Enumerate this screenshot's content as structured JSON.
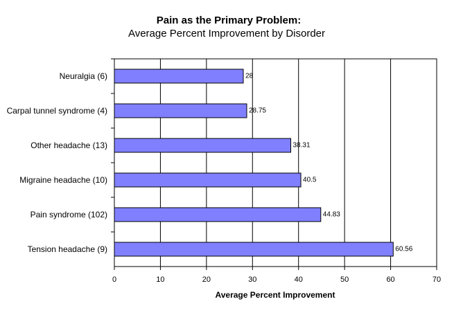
{
  "chart_data": {
    "type": "barh",
    "title": "Pain as the Primary Problem:",
    "subtitle": "Average Percent Improvement by Disorder",
    "xlabel": "Average Percent Improvement",
    "categories": [
      "Neuralgia (6)",
      "Carpal tunnel syndrome (4)",
      "Other headache (13)",
      "Migraine headache (10)",
      "Pain syndrome (102)",
      "Tension headache (9)"
    ],
    "values": [
      28,
      28.75,
      38.31,
      40.5,
      44.83,
      60.56
    ],
    "color": "#8080ff",
    "xlim": [
      0,
      70
    ],
    "xticks": [
      0,
      10,
      20,
      30,
      40,
      50,
      60,
      70
    ],
    "grid": true
  }
}
